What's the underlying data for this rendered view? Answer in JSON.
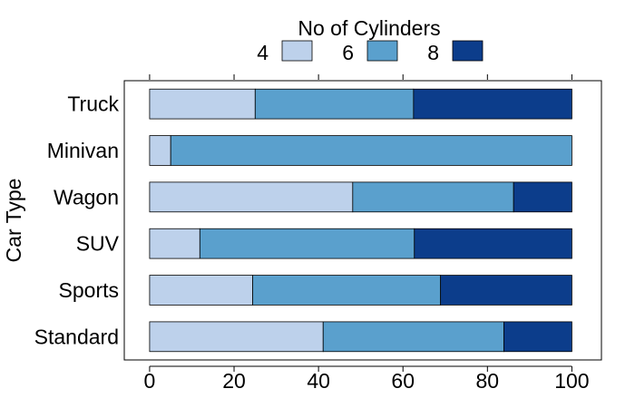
{
  "chart_data": {
    "type": "bar",
    "orientation": "horizontal",
    "stacked": true,
    "title": "",
    "xlabel": "",
    "ylabel": "Car Type",
    "xlim": [
      -6,
      107
    ],
    "xticks": [
      0,
      20,
      40,
      60,
      80,
      100
    ],
    "grid": false,
    "legend": {
      "title": "No of Cylinders",
      "position": "top"
    },
    "categories": [
      "Truck",
      "Minivan",
      "Wagon",
      "SUV",
      "Sports",
      "Standard"
    ],
    "series": [
      {
        "name": "4",
        "color": "#bdd1eb",
        "values": [
          25,
          5,
          48.1,
          11.9,
          24.4,
          41.1
        ]
      },
      {
        "name": "6",
        "color": "#5aa0cd",
        "values": [
          37.5,
          95,
          38.1,
          50.8,
          44.5,
          42.8
        ]
      },
      {
        "name": "8",
        "color": "#0c3d8b",
        "values": [
          37.5,
          0,
          13.8,
          37.3,
          31.1,
          16.1
        ]
      }
    ]
  }
}
